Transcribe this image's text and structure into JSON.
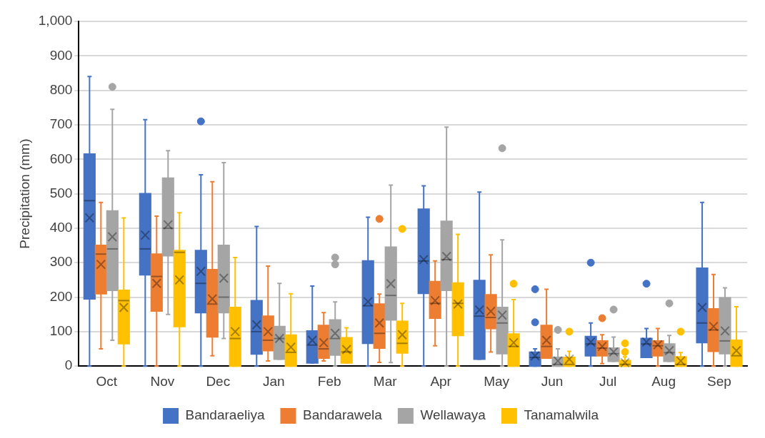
{
  "chart_data": {
    "type": "box",
    "ylabel": "Precipitation (mm)",
    "categories": [
      "Oct",
      "Nov",
      "Dec",
      "Jan",
      "Feb",
      "Mar",
      "Apr",
      "May",
      "Jun",
      "Jul",
      "Aug",
      "Sep"
    ],
    "ylim": [
      0,
      1000
    ],
    "yticks": [
      0,
      100,
      200,
      300,
      400,
      500,
      600,
      700,
      800,
      900,
      {
        "value": 1000,
        "label": "1,000"
      }
    ],
    "grid": "y",
    "legend": "bottom",
    "series": [
      {
        "name": "Bandaraeliya",
        "color": "#4472c4",
        "boxes": [
          {
            "low": 0,
            "q1": 195,
            "median": 480,
            "q3": 615,
            "high": 840,
            "mean": 430
          },
          {
            "low": 0,
            "q1": 265,
            "median": 340,
            "q3": 500,
            "high": 715,
            "mean": 380
          },
          {
            "low": 0,
            "q1": 155,
            "median": 240,
            "q3": 335,
            "high": 555,
            "mean": 275,
            "outliers": [
              710
            ]
          },
          {
            "low": 0,
            "q1": 35,
            "median": 100,
            "q3": 190,
            "high": 405,
            "mean": 120
          },
          {
            "low": 9,
            "q1": 9,
            "median": 61,
            "q3": 102,
            "high": 232,
            "mean": 75
          },
          {
            "low": 0,
            "q1": 66,
            "median": 175,
            "q3": 305,
            "high": 432,
            "mean": 187
          },
          {
            "low": 0,
            "q1": 211,
            "median": 305,
            "q3": 455,
            "high": 523,
            "mean": 309
          },
          {
            "low": 20,
            "q1": 20,
            "median": 145,
            "q3": 248,
            "high": 505,
            "mean": 163
          },
          {
            "low": 0,
            "q1": 0,
            "median": 25,
            "q3": 40,
            "high": 50,
            "mean": 30,
            "outliers": [
              127,
              223
            ]
          },
          {
            "low": 0,
            "q1": 30,
            "median": 64,
            "q3": 86,
            "high": 125,
            "mean": 70,
            "outliers": [
              300
            ]
          },
          {
            "low": 25,
            "q1": 25,
            "median": 64,
            "q3": 80,
            "high": 109,
            "mean": 70,
            "outliers": [
              239
            ]
          },
          {
            "low": 0,
            "q1": 68,
            "median": 125,
            "q3": 284,
            "high": 475,
            "mean": 170
          }
        ]
      },
      {
        "name": "Bandarawela",
        "color": "#ed7d31",
        "boxes": [
          {
            "low": 50,
            "q1": 210,
            "median": 325,
            "q3": 350,
            "high": 475,
            "mean": 295
          },
          {
            "low": 0,
            "q1": 160,
            "median": 260,
            "q3": 325,
            "high": 435,
            "mean": 240
          },
          {
            "low": 30,
            "q1": 85,
            "median": 180,
            "q3": 280,
            "high": 535,
            "mean": 195
          },
          {
            "low": 15,
            "q1": 45,
            "median": 75,
            "q3": 145,
            "high": 290,
            "mean": 100
          },
          {
            "low": 15,
            "q1": 23,
            "median": 50,
            "q3": 118,
            "high": 155,
            "mean": 68
          },
          {
            "low": 11,
            "q1": 52,
            "median": 95,
            "q3": 180,
            "high": 209,
            "mean": 125,
            "outliers": [
              427
            ]
          },
          {
            "low": 59,
            "q1": 139,
            "median": 182,
            "q3": 245,
            "high": 305,
            "mean": 190
          },
          {
            "low": 41,
            "q1": 109,
            "median": 141,
            "q3": 207,
            "high": 323,
            "mean": 159
          },
          {
            "low": 23,
            "q1": 23,
            "median": 57,
            "q3": 118,
            "high": 223,
            "mean": 75
          },
          {
            "low": 7,
            "q1": 30,
            "median": 52,
            "q3": 73,
            "high": 91,
            "mean": 57,
            "outliers": [
              139
            ]
          },
          {
            "low": 0,
            "q1": 30,
            "median": 59,
            "q3": 73,
            "high": 109,
            "mean": 62
          },
          {
            "low": 0,
            "q1": 43,
            "median": 105,
            "q3": 166,
            "high": 266,
            "mean": 115
          }
        ]
      },
      {
        "name": "Wellawaya",
        "color": "#a5a5a5",
        "boxes": [
          {
            "low": 75,
            "q1": 220,
            "median": 340,
            "q3": 450,
            "high": 745,
            "mean": 375,
            "outliers": [
              810
            ]
          },
          {
            "low": 150,
            "q1": 320,
            "median": 400,
            "q3": 545,
            "high": 625,
            "mean": 410
          },
          {
            "low": 80,
            "q1": 155,
            "median": 200,
            "q3": 350,
            "high": 590,
            "mean": 255
          },
          {
            "low": 20,
            "q1": 20,
            "median": 80,
            "q3": 115,
            "high": 240,
            "mean": 80
          },
          {
            "low": 0,
            "q1": 32,
            "median": 80,
            "q3": 134,
            "high": 186,
            "mean": 95,
            "outliers": [
              295,
              315
            ]
          },
          {
            "low": 10,
            "q1": 134,
            "median": 205,
            "q3": 345,
            "high": 525,
            "mean": 239
          },
          {
            "low": 0,
            "q1": 220,
            "median": 309,
            "q3": 420,
            "high": 693,
            "mean": 318
          },
          {
            "low": 0,
            "q1": 36,
            "median": 125,
            "q3": 170,
            "high": 366,
            "mean": 148,
            "outliers": [
              632
            ]
          },
          {
            "low": 0,
            "q1": 0,
            "median": 5,
            "q3": 25,
            "high": 50,
            "mean": 15,
            "outliers": [
              105
            ]
          },
          {
            "low": 14,
            "q1": 14,
            "median": 36,
            "q3": 52,
            "high": 84,
            "mean": 41,
            "outliers": [
              164
            ]
          },
          {
            "low": 14,
            "q1": 14,
            "median": 39,
            "q3": 64,
            "high": 89,
            "mean": 45,
            "outliers": [
              182
            ]
          },
          {
            "low": 0,
            "q1": 36,
            "median": 73,
            "q3": 198,
            "high": 227,
            "mean": 102
          }
        ]
      },
      {
        "name": "Tanamalwila",
        "color": "#ffc000",
        "boxes": [
          {
            "low": 0,
            "q1": 65,
            "median": 190,
            "q3": 220,
            "high": 430,
            "mean": 170
          },
          {
            "low": 0,
            "q1": 115,
            "median": 330,
            "q3": 335,
            "high": 445,
            "mean": 250
          },
          {
            "low": 0,
            "q1": 0,
            "median": 80,
            "q3": 170,
            "high": 315,
            "mean": 100
          },
          {
            "low": 0,
            "q1": 0,
            "median": 40,
            "q3": 90,
            "high": 210,
            "mean": 55
          },
          {
            "low": 9,
            "q1": 9,
            "median": 41,
            "q3": 82,
            "high": 111,
            "mean": 48
          },
          {
            "low": 0,
            "q1": 38,
            "median": 66,
            "q3": 130,
            "high": 182,
            "mean": 91,
            "outliers": [
              398
            ]
          },
          {
            "low": 0,
            "q1": 89,
            "median": 182,
            "q3": 241,
            "high": 382,
            "mean": 180
          },
          {
            "low": 0,
            "q1": 0,
            "median": 57,
            "q3": 93,
            "high": 193,
            "mean": 68,
            "outliers": [
              239
            ]
          },
          {
            "low": 0,
            "q1": 0,
            "median": 5,
            "q3": 25,
            "high": 43,
            "mean": 20,
            "outliers": [
              100
            ]
          },
          {
            "low": 0,
            "q1": 0,
            "median": 5,
            "q3": 16,
            "high": 27,
            "mean": 10,
            "outliers": [
              41,
              66
            ]
          },
          {
            "low": 0,
            "q1": 0,
            "median": 5,
            "q3": 27,
            "high": 39,
            "mean": 15,
            "outliers": [
              100
            ]
          },
          {
            "low": 0,
            "q1": 0,
            "median": 30,
            "q3": 75,
            "high": 172,
            "mean": 45
          }
        ]
      }
    ]
  }
}
